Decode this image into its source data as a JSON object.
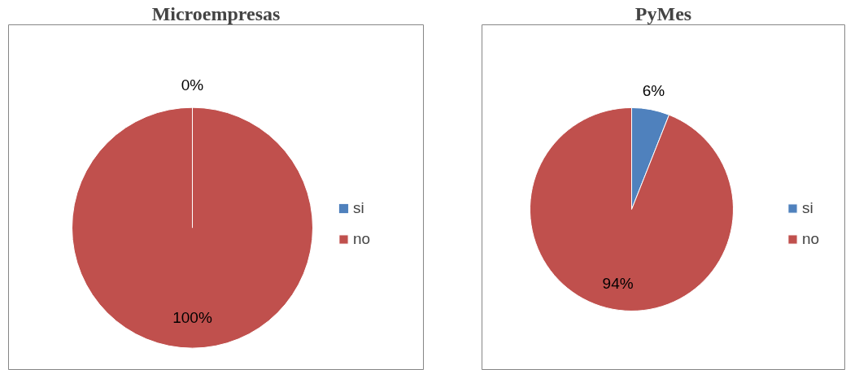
{
  "chart_data": [
    {
      "type": "pie",
      "title": "Microempresas",
      "categories": [
        "si",
        "no"
      ],
      "values": [
        0,
        100
      ],
      "colors": [
        "#4f81bd",
        "#c0504d"
      ],
      "value_labels": [
        "0%",
        "100%"
      ],
      "legend": "right"
    },
    {
      "type": "pie",
      "title": "PyMes",
      "categories": [
        "si",
        "no"
      ],
      "values": [
        6,
        94
      ],
      "colors": [
        "#4f81bd",
        "#c0504d"
      ],
      "value_labels": [
        "6%",
        "94%"
      ],
      "legend": "right"
    }
  ]
}
